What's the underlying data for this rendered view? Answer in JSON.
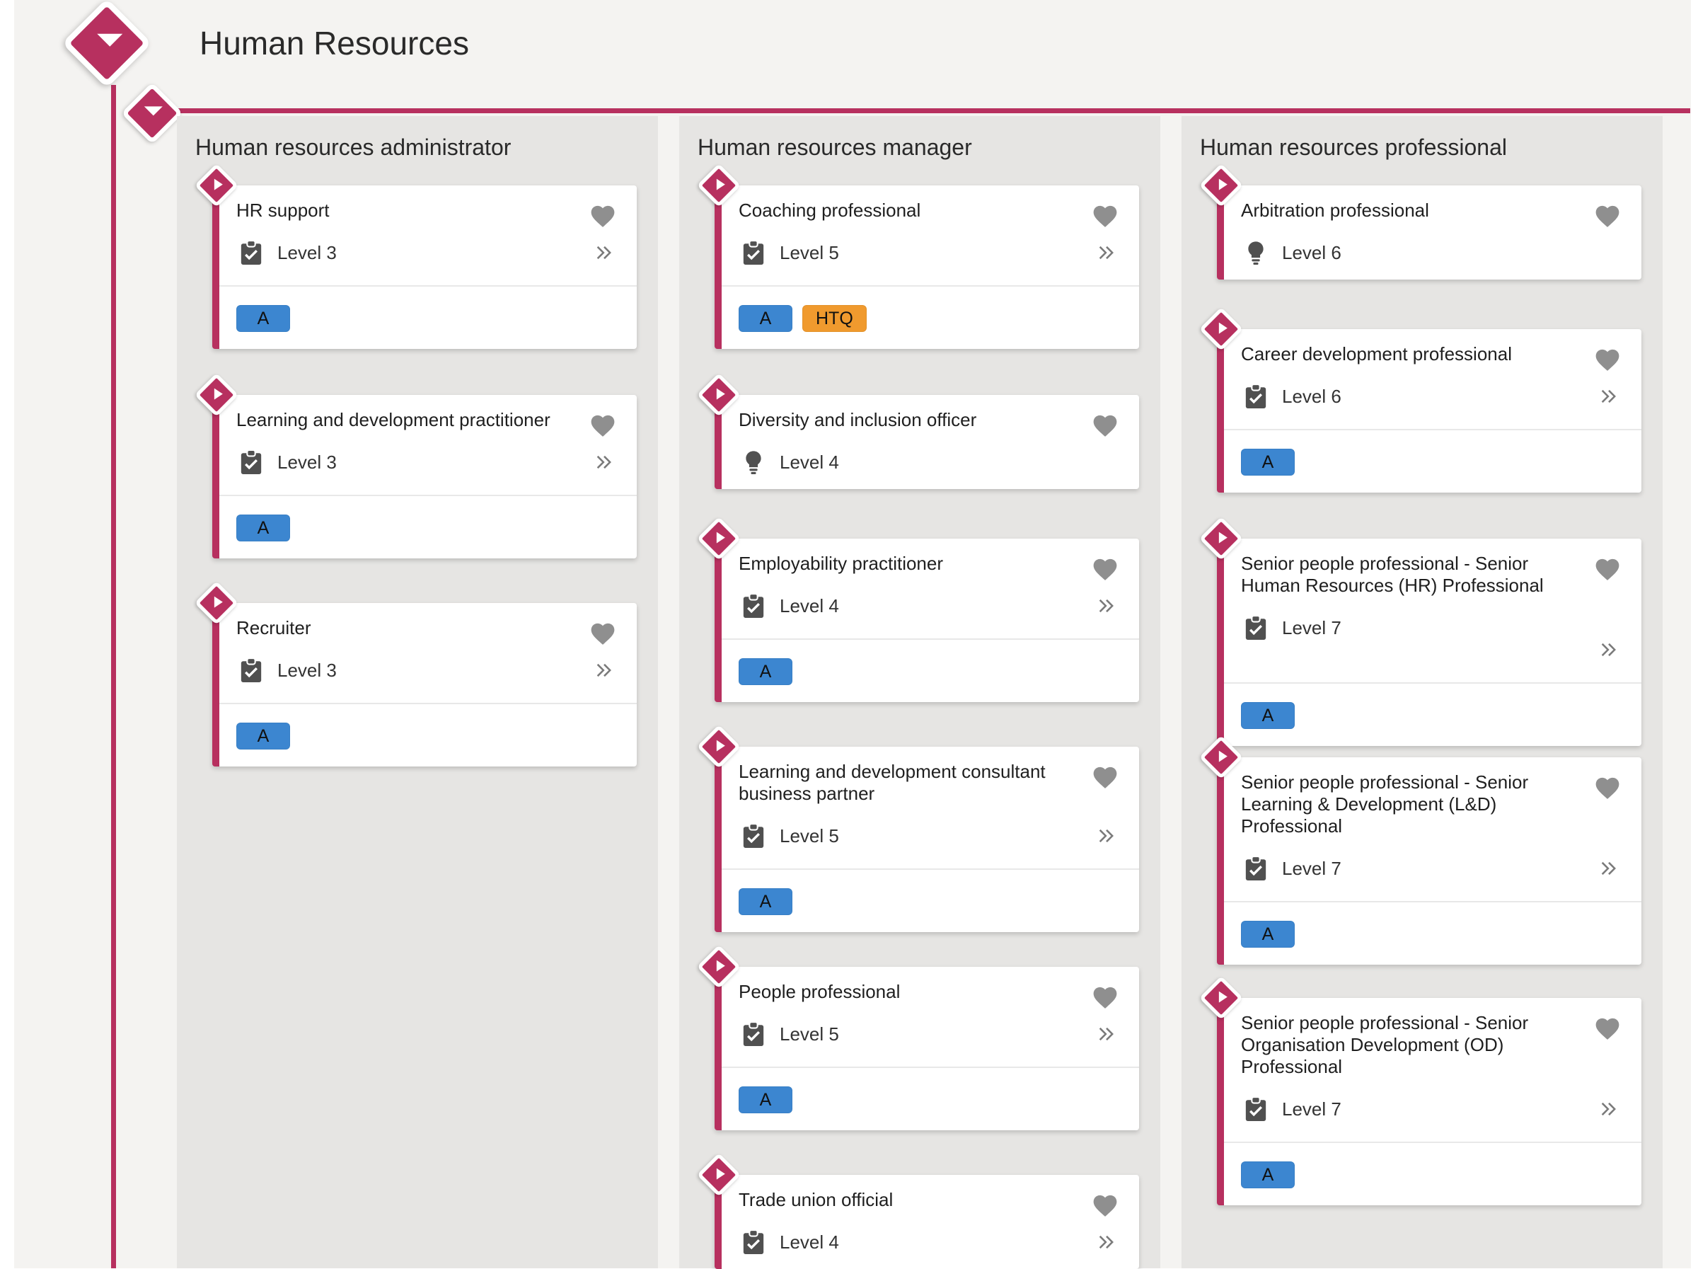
{
  "header": {
    "title": "Human Resources"
  },
  "columns": [
    {
      "title": "Human resources administrator",
      "cards": [
        {
          "title": "HR support",
          "level": "Level 3",
          "icon": "clipboard-check-icon",
          "badges": [
            "A"
          ]
        },
        {
          "title": "Learning and development practitioner",
          "level": "Level 3",
          "icon": "clipboard-check-icon",
          "badges": [
            "A"
          ]
        },
        {
          "title": "Recruiter",
          "level": "Level 3",
          "icon": "clipboard-check-icon",
          "badges": [
            "A"
          ]
        }
      ]
    },
    {
      "title": "Human resources manager",
      "cards": [
        {
          "title": "Coaching professional",
          "level": "Level 5",
          "icon": "clipboard-check-icon",
          "badges": [
            "A",
            "HTQ"
          ]
        },
        {
          "title": "Diversity and inclusion officer",
          "level": "Level 4",
          "icon": "lightbulb-icon",
          "badges": []
        },
        {
          "title": "Employability practitioner",
          "level": "Level 4",
          "icon": "clipboard-check-icon",
          "badges": [
            "A"
          ]
        },
        {
          "title": "Learning and development consultant business partner",
          "level": "Level 5",
          "icon": "clipboard-check-icon",
          "badges": [
            "A"
          ]
        },
        {
          "title": "People professional",
          "level": "Level 5",
          "icon": "clipboard-check-icon",
          "badges": [
            "A"
          ]
        },
        {
          "title": "Trade union official",
          "level": "Level 4",
          "icon": "clipboard-check-icon",
          "badges": []
        }
      ]
    },
    {
      "title": "Human resources professional",
      "cards": [
        {
          "title": "Arbitration professional",
          "level": "Level 6",
          "icon": "lightbulb-icon",
          "badges": []
        },
        {
          "title": "Career development professional",
          "level": "Level 6",
          "icon": "clipboard-check-icon",
          "badges": [
            "A"
          ]
        },
        {
          "title": "Senior people professional - Senior Human Resources (HR) Professional",
          "level": "Level 7",
          "icon": "clipboard-check-icon",
          "badges": [
            "A"
          ]
        },
        {
          "title": "Senior people professional - Senior Learning & Development (L&D) Professional",
          "level": "Level 7",
          "icon": "clipboard-check-icon",
          "badges": [
            "A"
          ]
        },
        {
          "title": "Senior people professional - Senior Organisation Development (OD) Professional",
          "level": "Level 7",
          "icon": "clipboard-check-icon",
          "badges": [
            "A"
          ]
        }
      ]
    }
  ],
  "colors": {
    "accent": "#b7305f",
    "badge_a": "#3c86d0",
    "badge_htq": "#f09a2e"
  }
}
